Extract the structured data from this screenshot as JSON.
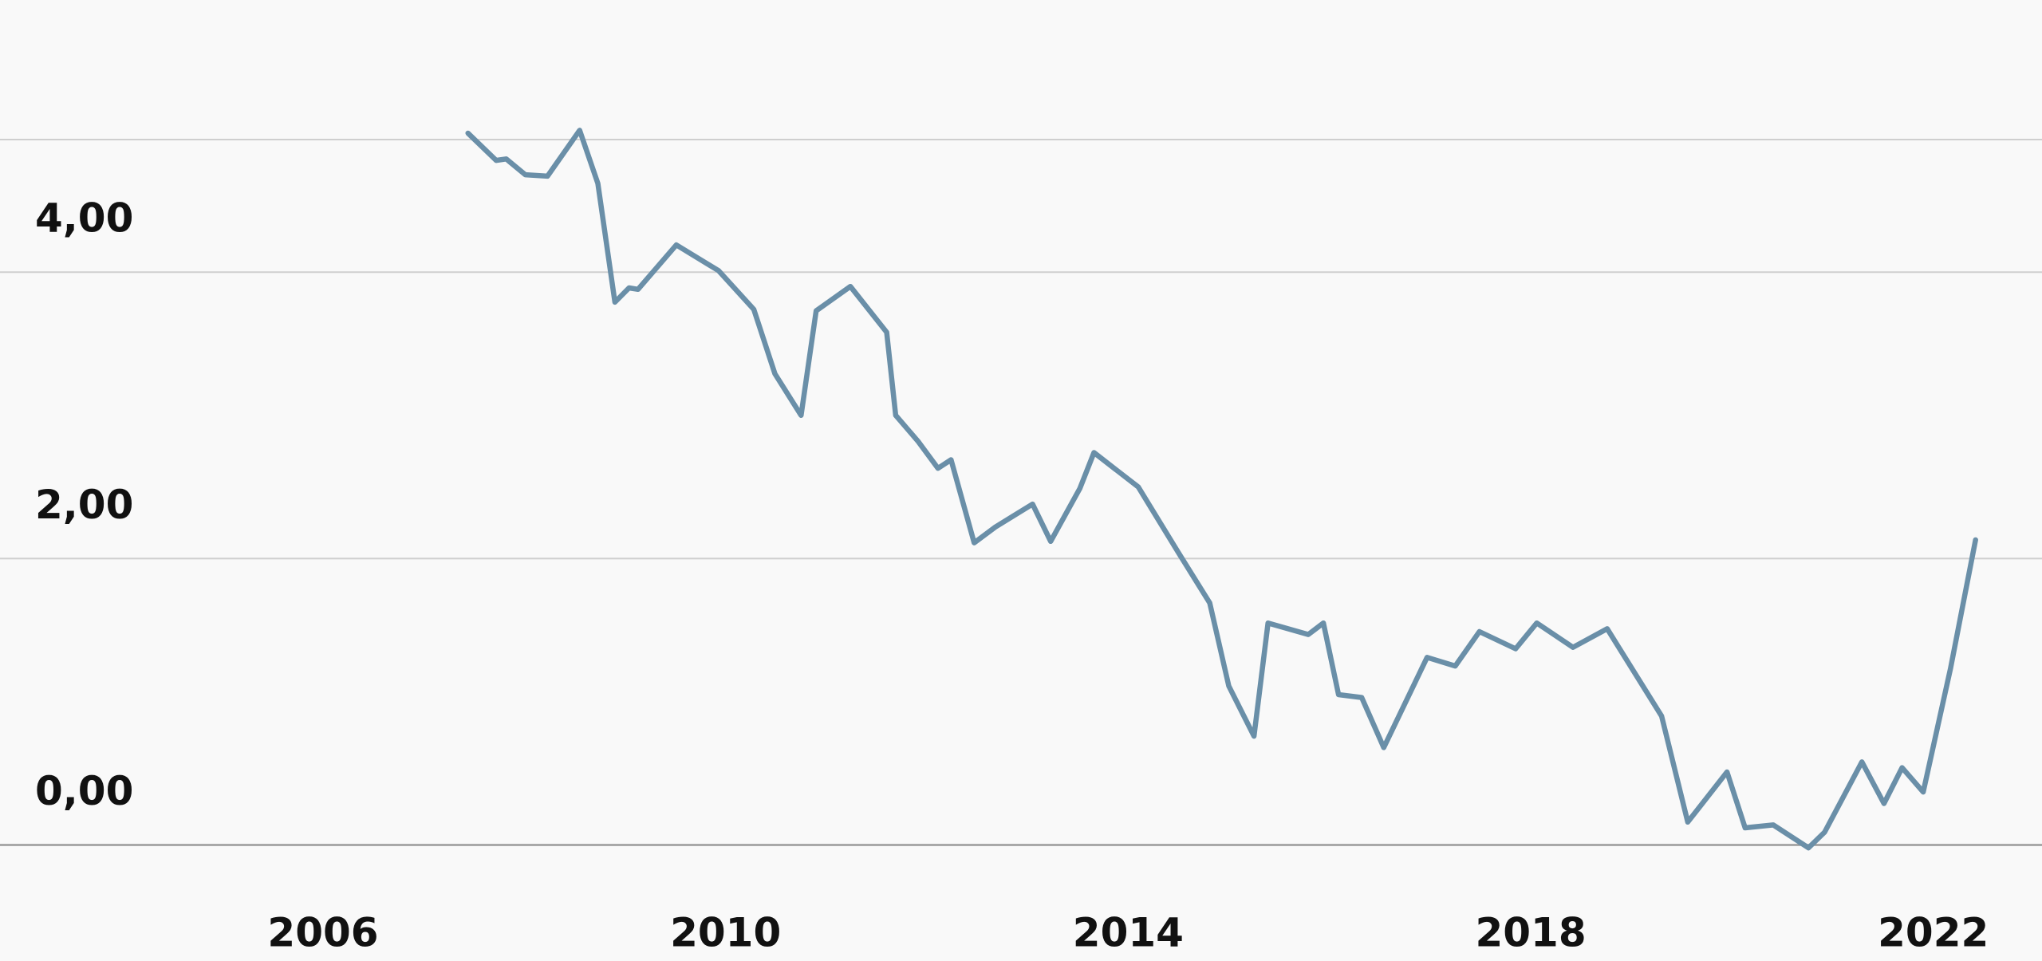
{
  "chart_data": {
    "type": "line",
    "x": [
      2007.44,
      2007.72,
      2007.82,
      2008.01,
      2008.23,
      2008.55,
      2008.73,
      2008.9,
      2009.04,
      2009.13,
      2009.51,
      2009.93,
      2010.28,
      2010.49,
      2010.75,
      2010.9,
      2011.24,
      2011.6,
      2011.69,
      2011.91,
      2012.11,
      2012.24,
      2012.47,
      2012.68,
      2013.05,
      2013.23,
      2013.52,
      2013.66,
      2014.1,
      2014.5,
      2014.81,
      2015.0,
      2015.25,
      2015.39,
      2015.79,
      2015.94,
      2016.09,
      2016.32,
      2016.54,
      2016.97,
      2017.25,
      2017.49,
      2017.85,
      2018.06,
      2018.42,
      2018.76,
      2019.3,
      2019.56,
      2019.95,
      2020.13,
      2020.41,
      2020.76,
      2020.92,
      2021.29,
      2021.51,
      2021.69,
      2021.9,
      2022.17,
      2022.42
    ],
    "series": [
      {
        "color": "#6a8fa8",
        "values": [
          4.97,
          4.78,
          4.79,
          4.68,
          4.67,
          4.99,
          4.62,
          3.79,
          3.89,
          3.88,
          4.19,
          4.01,
          3.74,
          3.29,
          3.0,
          3.73,
          3.9,
          3.58,
          3.0,
          2.82,
          2.63,
          2.69,
          2.11,
          2.22,
          2.38,
          2.12,
          2.49,
          2.74,
          2.5,
          2.04,
          1.69,
          1.11,
          0.76,
          1.55,
          1.47,
          1.55,
          1.05,
          1.03,
          0.68,
          1.31,
          1.25,
          1.49,
          1.37,
          1.55,
          1.38,
          1.51,
          0.9,
          0.16,
          0.51,
          0.12,
          0.14,
          -0.02,
          0.09,
          0.58,
          0.29,
          0.54,
          0.37,
          1.23,
          2.13
        ]
      }
    ],
    "xlim": [
      2002.79,
      2023.08
    ],
    "xticks": [
      2006,
      2010,
      2014,
      2018,
      2022
    ],
    "ylim": [
      -0.81,
      5.9
    ],
    "yticks": [
      {
        "value": 0,
        "label": "0,00"
      },
      {
        "value": 2,
        "label": "2,00"
      },
      {
        "value": 4,
        "label": "4,00"
      }
    ],
    "grid": true
  }
}
